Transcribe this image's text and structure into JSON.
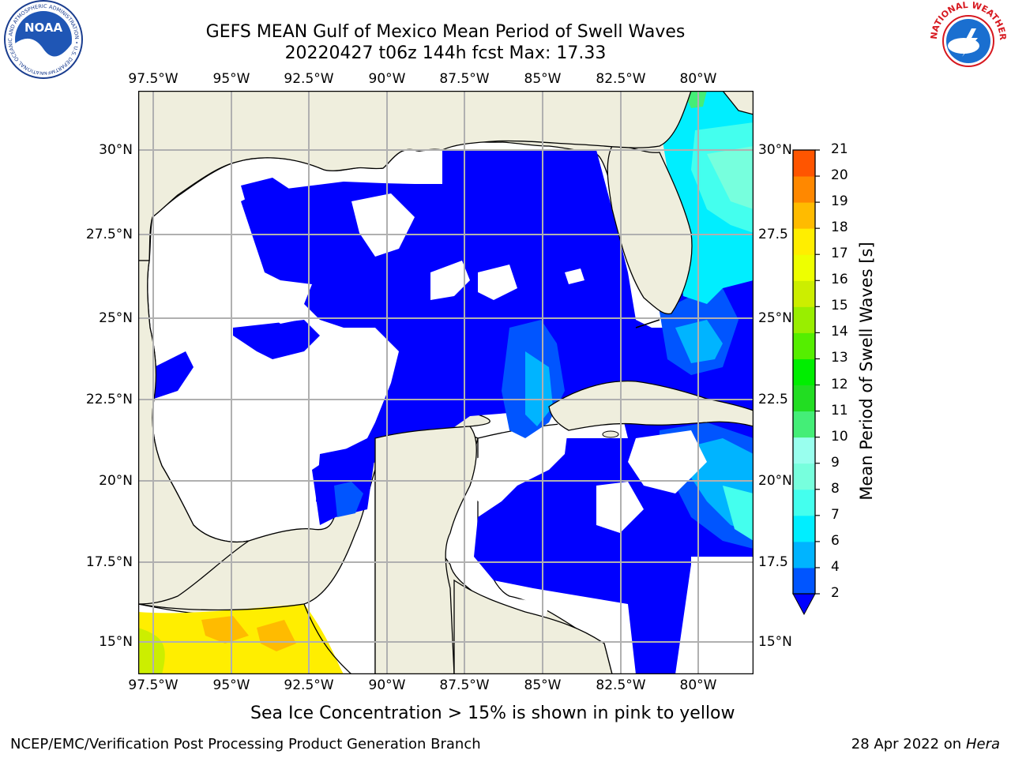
{
  "title": {
    "line1": "GEFS MEAN Gulf of Mexico Mean Period of Swell Waves",
    "line2": "20220427 t06z 144h fcst   Max: 17.33"
  },
  "map": {
    "lon_labels": [
      "97.5°W",
      "95°W",
      "92.5°W",
      "90°W",
      "87.5°W",
      "85°W",
      "82.5°W",
      "80°W"
    ],
    "lat_labels": [
      "30°N",
      "27.5°N",
      "25°N",
      "22.5°N",
      "20°N",
      "17.5°N",
      "15°N"
    ],
    "right_lat_labels": [
      "30°N",
      "27.5",
      "25°N",
      "22.5",
      "20°N",
      "17.5",
      "15°N"
    ],
    "land_color": "#efeedd",
    "ocean_color": "#ffffff"
  },
  "colorbar": {
    "label": "Mean Period of Swell Waves [s]",
    "ticks": [
      "2",
      "4",
      "6",
      "7",
      "8",
      "9",
      "10",
      "11",
      "12",
      "13",
      "14",
      "15",
      "16",
      "17",
      "18",
      "19",
      "20",
      "21"
    ],
    "colors": [
      "#0055ff",
      "#00b4ff",
      "#00eeff",
      "#44ffee",
      "#77ffdd",
      "#99ffee",
      "#44ee77",
      "#22dd22",
      "#00ee00",
      "#55ee00",
      "#99ee00",
      "#ccee00",
      "#eeff00",
      "#ffee00",
      "#ffbb00",
      "#ff8800",
      "#ff5500",
      "#ff2200",
      "#ff0000"
    ],
    "under_color": "#0000ff"
  },
  "footer": {
    "note": "Sea Ice Concentration > 15% is shown in pink to yellow",
    "left": "NCEP/EMC/Verification Post Processing Product Generation Branch",
    "right_date": "28 Apr 2022 on ",
    "right_host": "Hera"
  },
  "logos": {
    "noaa_text": "NOAA",
    "noaa_ring": "NATIONAL OCEANIC AND ATMOSPHERIC ADMINISTRATION • U.S. DEPARTMENT OF COMMERCE",
    "nws_ring": "NATIONAL WEATHER SERVICE"
  }
}
